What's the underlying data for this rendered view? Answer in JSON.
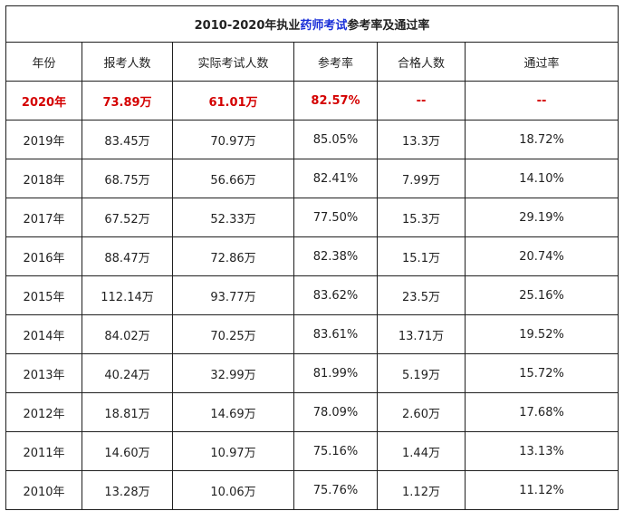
{
  "title": {
    "prefix": "2010-2020年执业",
    "highlight": "药师考试",
    "suffix": "参考率及通过率"
  },
  "columns": [
    "年份",
    "报考人数",
    "实际考试人数",
    "参考率",
    "合格人数",
    "通过率"
  ],
  "highlight_row": {
    "year": "2020年",
    "applicants": "73.89万",
    "examinees": "61.01万",
    "participation": "82.57%",
    "passed": "--",
    "pass_rate": "--"
  },
  "rows": [
    {
      "year": "2019年",
      "applicants": "83.45万",
      "examinees": "70.97万",
      "participation": "85.05%",
      "passed": "13.3万",
      "pass_rate": "18.72%"
    },
    {
      "year": "2018年",
      "applicants": "68.75万",
      "examinees": "56.66万",
      "participation": "82.41%",
      "passed": "7.99万",
      "pass_rate": "14.10%"
    },
    {
      "year": "2017年",
      "applicants": "67.52万",
      "examinees": "52.33万",
      "participation": "77.50%",
      "passed": "15.3万",
      "pass_rate": "29.19%"
    },
    {
      "year": "2016年",
      "applicants": "88.47万",
      "examinees": "72.86万",
      "participation": "82.38%",
      "passed": "15.1万",
      "pass_rate": "20.74%"
    },
    {
      "year": "2015年",
      "applicants": "112.14万",
      "examinees": "93.77万",
      "participation": "83.62%",
      "passed": "23.5万",
      "pass_rate": "25.16%"
    },
    {
      "year": "2014年",
      "applicants": "84.02万",
      "examinees": "70.25万",
      "participation": "83.61%",
      "passed": "13.71万",
      "pass_rate": "19.52%"
    },
    {
      "year": "2013年",
      "applicants": "40.24万",
      "examinees": "32.99万",
      "participation": "81.99%",
      "passed": "5.19万",
      "pass_rate": "15.72%"
    },
    {
      "year": "2012年",
      "applicants": "18.81万",
      "examinees": "14.69万",
      "participation": "78.09%",
      "passed": "2.60万",
      "pass_rate": "17.68%"
    },
    {
      "year": "2011年",
      "applicants": "14.60万",
      "examinees": "10.97万",
      "participation": "75.16%",
      "passed": "1.44万",
      "pass_rate": "13.13%"
    },
    {
      "year": "2010年",
      "applicants": "13.28万",
      "examinees": "10.06万",
      "participation": "75.76%",
      "passed": "1.12万",
      "pass_rate": "11.12%"
    }
  ],
  "colors": {
    "highlight_text": "#d40000",
    "title_link": "#1a2fd8",
    "border": "#1f1f1f"
  }
}
